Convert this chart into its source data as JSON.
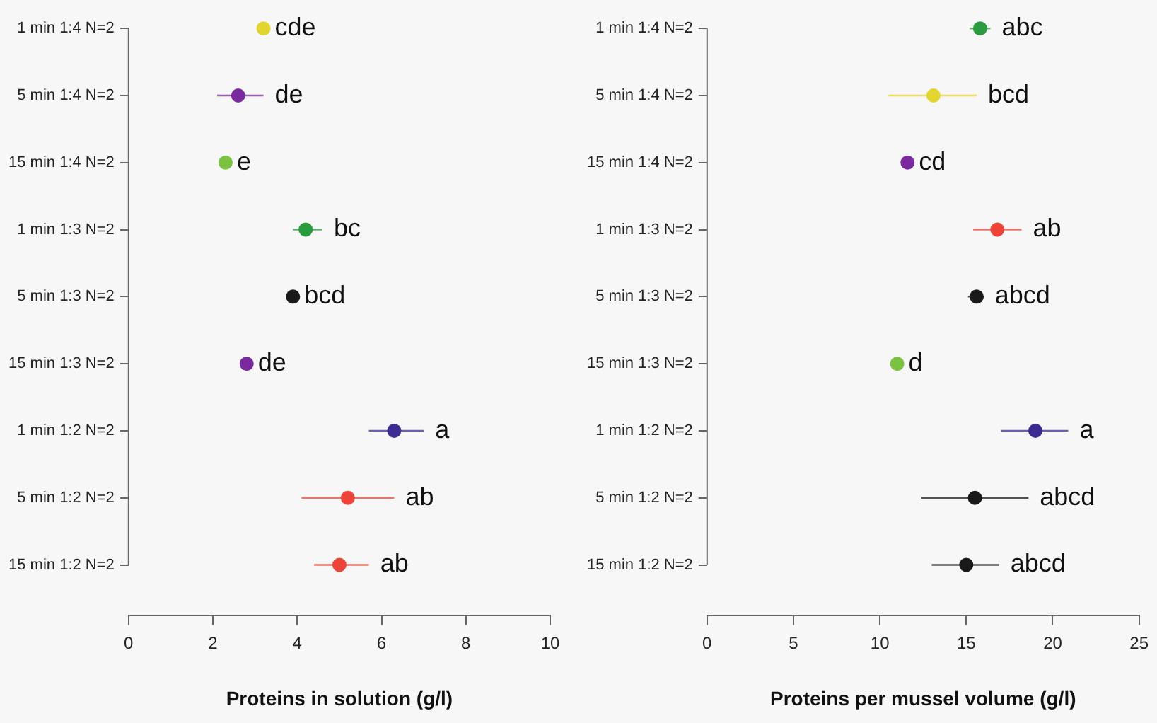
{
  "chart_data": [
    {
      "type": "scatter",
      "orientation": "horizontal",
      "marker": "circle",
      "xlabel": "Proteins in solution (g/l)",
      "categories": [
        "1 min 1:4 N=2",
        "5 min 1:4 N=2",
        "15 min 1:4 N=2",
        "1 min 1:3 N=2",
        "5 min 1:3 N=2",
        "15 min 1:3 N=2",
        "1 min 1:2 N=2",
        "5 min 1:2 N=2",
        "15 min 1:2 N=2"
      ],
      "values": [
        3.2,
        2.6,
        2.3,
        4.2,
        3.9,
        2.8,
        6.3,
        5.2,
        5.0
      ],
      "colors": [
        "#e3d52f",
        "#7b2a9e",
        "#7cc242",
        "#2a9b3f",
        "#1a1a1a",
        "#7b2a9e",
        "#3b2c91",
        "#ec4438",
        "#ec4438"
      ],
      "errors": [
        null,
        [
          2.1,
          3.2
        ],
        null,
        [
          3.9,
          4.6
        ],
        null,
        null,
        [
          5.7,
          7.0
        ],
        [
          4.1,
          6.3
        ],
        [
          4.4,
          5.7
        ]
      ],
      "xlim": [
        0,
        10
      ],
      "xticks": [
        0,
        2,
        4,
        6,
        8,
        10
      ],
      "annotations": [
        {
          "text": "cde",
          "x": 3.2,
          "y": "1 min 1:4 N=2"
        },
        {
          "text": "de",
          "x": 3.2,
          "y": "5 min 1:4 N=2"
        },
        {
          "text": "e",
          "x": 2.3,
          "y": "15 min 1:4 N=2"
        },
        {
          "text": "bc",
          "x": 4.6,
          "y": "1 min 1:3 N=2"
        },
        {
          "text": "bcd",
          "x": 3.9,
          "y": "5 min 1:3 N=2"
        },
        {
          "text": "de",
          "x": 2.8,
          "y": "15 min 1:3 N=2"
        },
        {
          "text": "a",
          "x": 7.0,
          "y": "1 min 1:2 N=2"
        },
        {
          "text": "ab",
          "x": 6.3,
          "y": "5 min 1:2 N=2"
        },
        {
          "text": "ab",
          "x": 5.7,
          "y": "15 min 1:2 N=2"
        }
      ]
    },
    {
      "type": "scatter",
      "orientation": "horizontal",
      "marker": "circle",
      "xlabel": "Proteins per mussel volume (g/l)",
      "categories": [
        "1 min 1:4 N=2",
        "5 min 1:4 N=2",
        "15 min 1:4 N=2",
        "1 min 1:3 N=2",
        "5 min 1:3 N=2",
        "15 min 1:3 N=2",
        "1 min 1:2 N=2",
        "5 min 1:2 N=2",
        "15 min 1:2 N=2"
      ],
      "values": [
        15.8,
        13.1,
        11.6,
        16.8,
        15.6,
        11.0,
        19.0,
        15.5,
        15.0
      ],
      "colors": [
        "#2a9b3f",
        "#e3d52f",
        "#7b2a9e",
        "#ec4438",
        "#1a1a1a",
        "#7cc242",
        "#3b2c91",
        "#1a1a1a",
        "#1a1a1a"
      ],
      "errors": [
        [
          15.2,
          16.4
        ],
        [
          10.5,
          15.6
        ],
        null,
        [
          15.4,
          18.2
        ],
        [
          15.1,
          16.0
        ],
        null,
        [
          17.0,
          20.9
        ],
        [
          12.4,
          18.6
        ],
        [
          13.0,
          16.9
        ]
      ],
      "xlim": [
        0,
        25
      ],
      "xticks": [
        0,
        5,
        10,
        15,
        20,
        25
      ],
      "annotations": [
        {
          "text": "abc",
          "x": 16.4,
          "y": "1 min 1:4 N=2"
        },
        {
          "text": "bcd",
          "x": 15.6,
          "y": "5 min 1:4 N=2"
        },
        {
          "text": "cd",
          "x": 11.6,
          "y": "15 min 1:4 N=2"
        },
        {
          "text": "ab",
          "x": 18.2,
          "y": "1 min 1:3 N=2"
        },
        {
          "text": "abcd",
          "x": 16.0,
          "y": "5 min 1:3 N=2"
        },
        {
          "text": "d",
          "x": 11.0,
          "y": "15 min 1:3 N=2"
        },
        {
          "text": "a",
          "x": 20.9,
          "y": "1 min 1:2 N=2"
        },
        {
          "text": "abcd",
          "x": 18.6,
          "y": "5 min 1:2 N=2"
        },
        {
          "text": "abcd",
          "x": 16.9,
          "y": "15 min 1:2 N=2"
        }
      ]
    }
  ]
}
